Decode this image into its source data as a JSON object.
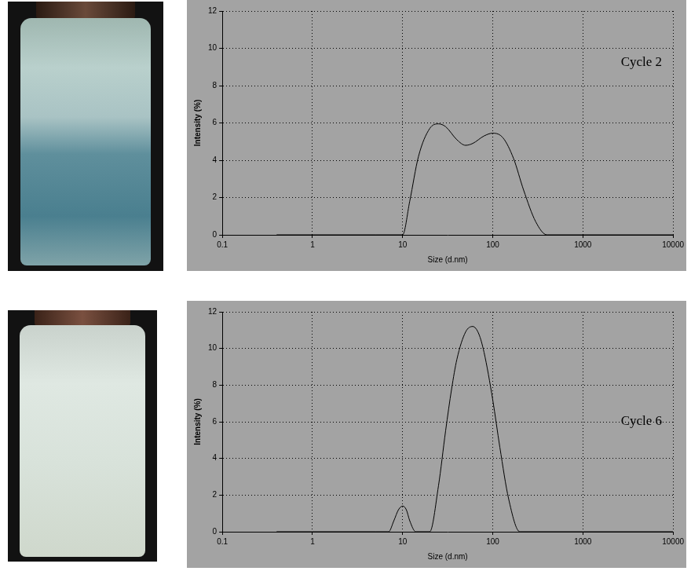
{
  "chart_data": [
    {
      "type": "line",
      "annotation": "Cycle 2",
      "x_label": "Size (d.nm)",
      "y_label": "Intensity (%)",
      "x": [
        0.4,
        1,
        5,
        10,
        12,
        15,
        20,
        25,
        30,
        40,
        50,
        60,
        80,
        100,
        130,
        170,
        220,
        300,
        400,
        1000,
        10000
      ],
      "values": [
        0,
        0,
        0,
        0,
        1.8,
        4.2,
        5.7,
        5.95,
        5.8,
        5.1,
        4.8,
        4.9,
        5.3,
        5.45,
        5.2,
        4.1,
        2.4,
        0.7,
        0,
        0,
        0
      ],
      "color": "#000000",
      "log": "x",
      "grid": true,
      "xlim": [
        0.1,
        10000
      ],
      "xticks": [
        0.1,
        1,
        10,
        100,
        1000,
        10000
      ],
      "ylim": [
        0,
        12
      ],
      "yticks": [
        0,
        2,
        4,
        6,
        8,
        10,
        12
      ]
    },
    {
      "type": "line",
      "annotation": "Cycle 6",
      "x_label": "Size (d.nm)",
      "y_label": "Intensity (%)",
      "x": [
        0.4,
        1,
        5,
        7,
        8,
        9,
        10,
        11,
        12,
        14,
        20,
        25,
        30,
        35,
        40,
        50,
        60,
        70,
        80,
        100,
        120,
        150,
        200,
        1000,
        10000
      ],
      "values": [
        0,
        0,
        0,
        0,
        0.6,
        1.2,
        1.4,
        1.2,
        0.6,
        0,
        0,
        2.5,
        5.5,
        7.8,
        9.4,
        10.9,
        11.2,
        10.8,
        9.8,
        7.2,
        4.6,
        1.8,
        0,
        0,
        0
      ],
      "color": "#000000",
      "log": "x",
      "grid": true,
      "xlim": [
        0.1,
        10000
      ],
      "xticks": [
        0.1,
        1,
        10,
        100,
        1000,
        10000
      ],
      "ylim": [
        0,
        12
      ],
      "yticks": [
        0,
        2,
        4,
        6,
        8,
        10,
        12
      ]
    }
  ]
}
